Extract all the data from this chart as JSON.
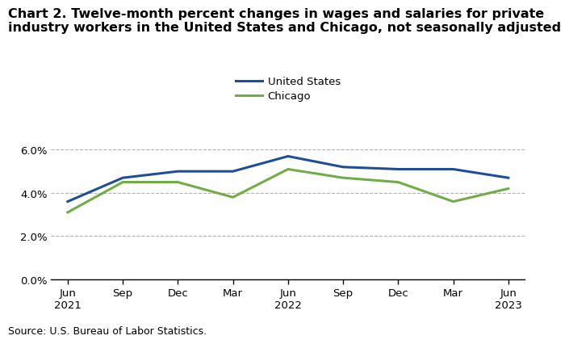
{
  "title_line1": "Chart 2. Twelve-month percent changes in wages and salaries for private",
  "title_line2": "industry workers in the United States and Chicago, not seasonally adjusted",
  "x_labels": [
    "Jun\n2021",
    "Sep",
    "Dec",
    "Mar",
    "Jun\n2022",
    "Sep",
    "Dec",
    "Mar",
    "Jun\n2023"
  ],
  "x_positions": [
    0,
    1,
    2,
    3,
    4,
    5,
    6,
    7,
    8
  ],
  "us_values": [
    0.036,
    0.047,
    0.05,
    0.05,
    0.057,
    0.052,
    0.051,
    0.051,
    0.047
  ],
  "chicago_values": [
    0.031,
    0.045,
    0.045,
    0.038,
    0.051,
    0.047,
    0.045,
    0.036,
    0.042
  ],
  "us_color": "#1f4e96",
  "chicago_color": "#70ad47",
  "ylim": [
    0.0,
    0.068
  ],
  "yticks": [
    0.0,
    0.02,
    0.04,
    0.06
  ],
  "ytick_labels": [
    "0.0%",
    "2.0%",
    "4.0%",
    "6.0%"
  ],
  "source_text": "Source: U.S. Bureau of Labor Statistics.",
  "legend_us": "United States",
  "legend_chicago": "Chicago",
  "grid_color": "#b0b0b0",
  "line_width": 2.2,
  "title_fontsize": 11.5,
  "tick_fontsize": 9.5,
  "legend_fontsize": 9.5,
  "source_fontsize": 9
}
